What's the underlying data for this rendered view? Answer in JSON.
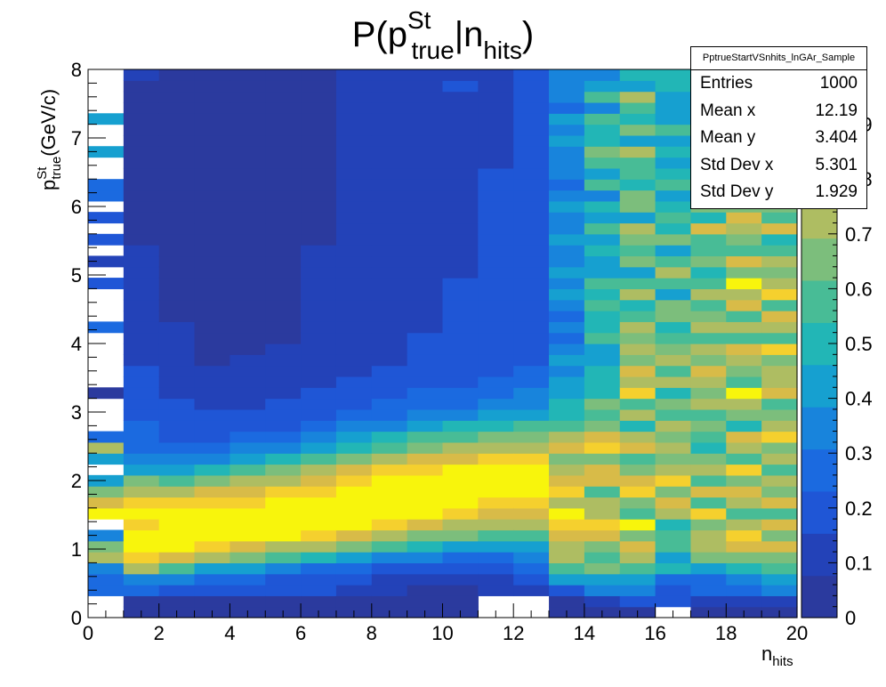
{
  "title": {
    "main": "P(p",
    "sup": "St",
    "sub": "true",
    "sep": "|n",
    "sub2": "hits",
    "close": ")"
  },
  "xaxis": {
    "label_main": "n",
    "label_sub": "hits",
    "ticks": [
      "0",
      "2",
      "4",
      "6",
      "8",
      "10",
      "12",
      "14",
      "16",
      "18",
      "20"
    ]
  },
  "yaxis": {
    "label_main": "p",
    "label_sup": "St",
    "label_sub": "true",
    "label_unit": "(GeV/c)",
    "ticks": [
      "0",
      "1",
      "2",
      "3",
      "4",
      "5",
      "6",
      "7",
      "8"
    ]
  },
  "colorbar": {
    "ticks": [
      "0",
      "0.1",
      "0.2",
      "0.3",
      "0.4",
      "0.5",
      "0.6",
      "0.7",
      "0.8",
      "0.9"
    ],
    "colors": [
      "#2b3a9e",
      "#2342b8",
      "#1f56d6",
      "#1b6ae0",
      "#1884dc",
      "#16a0d0",
      "#22b6b6",
      "#48bc96",
      "#7cbe7c",
      "#aebd62",
      "#d8bb48",
      "#f5d02e",
      "#f8f50c"
    ]
  },
  "stats": {
    "name": "PptrueStartVSnhits_lnGAr_Sample",
    "rows": [
      {
        "label": "Entries",
        "value": "1000"
      },
      {
        "label": "Mean x",
        "value": "12.19"
      },
      {
        "label": "Mean y",
        "value": "3.404"
      },
      {
        "label": "Std Dev x",
        "value": "5.301"
      },
      {
        "label": "Std Dev y",
        "value": "1.929"
      }
    ]
  },
  "chart_data": {
    "type": "heatmap",
    "title": "P(p^St_true|n_hits)",
    "xlabel": "n_hits",
    "ylabel": "p^St_true (GeV/c)",
    "xlim": [
      0,
      20
    ],
    "ylim": [
      0,
      8
    ],
    "zlim": [
      0,
      1
    ],
    "x_bins": 20,
    "y_bins": 50,
    "grid": false,
    "palette": "kBird",
    "stats_box": "top-right",
    "values_by_x_bin": [
      [
        0,
        0,
        0.24,
        0.28,
        0.36,
        0.76,
        0.66,
        0.34,
        0,
        0.94,
        0.82,
        0.66,
        0.42,
        0,
        0.46,
        0.7,
        0.3,
        0,
        0,
        0,
        0.02,
        0,
        0,
        0,
        0,
        0,
        0.3,
        0,
        0,
        0,
        0.16,
        0,
        0.14,
        0,
        0.18,
        0,
        0.2,
        0,
        0.26,
        0.24,
        0,
        0,
        0.42,
        0,
        0,
        0.44,
        0,
        0,
        0,
        0
      ],
      [
        0.02,
        0.04,
        0.26,
        0.38,
        0.72,
        0.9,
        1.0,
        1.0,
        0.9,
        0.96,
        0.88,
        0.76,
        0.62,
        0.46,
        0.38,
        0.3,
        0.28,
        0.26,
        0.22,
        0.2,
        0.18,
        0.18,
        0.16,
        0.14,
        0.14,
        0.12,
        0.12,
        0.1,
        0.1,
        0.1,
        0.08,
        0.08,
        0.08,
        0.08,
        0.06,
        0.06,
        0.06,
        0.06,
        0.06,
        0.04,
        0.04,
        0.04,
        0.04,
        0.04,
        0.04,
        0.06,
        0.06,
        0.04,
        0.04,
        0.14
      ],
      [
        0.04,
        0.04,
        0.22,
        0.32,
        0.56,
        0.8,
        0.94,
        1.0,
        1.0,
        0.94,
        0.86,
        0.72,
        0.58,
        0.46,
        0.34,
        0.26,
        0.22,
        0.2,
        0.18,
        0.16,
        0.14,
        0.12,
        0.1,
        0.1,
        0.08,
        0.08,
        0.08,
        0.06,
        0.06,
        0.06,
        0.04,
        0.04,
        0.04,
        0.04,
        0.04,
        0.02,
        0.02,
        0.02,
        0.02,
        0.02,
        0.02,
        0.02,
        0.02,
        0.02,
        0.02,
        0.02,
        0.02,
        0.02,
        0.02,
        0.02
      ],
      [
        0.04,
        0.04,
        0.2,
        0.26,
        0.46,
        0.7,
        0.88,
        1.0,
        1.0,
        0.96,
        0.9,
        0.8,
        0.64,
        0.5,
        0.38,
        0.28,
        0.22,
        0.18,
        0.16,
        0.14,
        0.12,
        0.1,
        0.08,
        0.06,
        0.06,
        0.06,
        0.04,
        0.04,
        0.02,
        0.02,
        0.02,
        0.02,
        0.02,
        0.02,
        0.02,
        0.02,
        0.02,
        0.02,
        0.02,
        0.02,
        0.02,
        0.02,
        0.02,
        0.02,
        0.02,
        0.02,
        0.02,
        0.02,
        0.02,
        0.02
      ],
      [
        0.04,
        0.04,
        0.18,
        0.24,
        0.4,
        0.62,
        0.82,
        0.98,
        1.0,
        1.0,
        0.92,
        0.84,
        0.7,
        0.56,
        0.42,
        0.32,
        0.26,
        0.2,
        0.18,
        0.14,
        0.12,
        0.1,
        0.08,
        0.08,
        0.06,
        0.06,
        0.04,
        0.04,
        0.02,
        0.02,
        0.02,
        0.02,
        0.02,
        0.02,
        0.02,
        0.02,
        0.02,
        0.02,
        0.02,
        0.02,
        0.02,
        0.02,
        0.02,
        0.02,
        0.02,
        0.02,
        0.02,
        0.02,
        0.02,
        0.02
      ],
      [
        0.04,
        0.04,
        0.16,
        0.2,
        0.34,
        0.56,
        0.76,
        0.94,
        1.0,
        1.0,
        0.96,
        0.88,
        0.76,
        0.62,
        0.48,
        0.38,
        0.3,
        0.22,
        0.18,
        0.16,
        0.14,
        0.12,
        0.1,
        0.08,
        0.08,
        0.06,
        0.06,
        0.06,
        0.06,
        0.06,
        0.06,
        0.06,
        0.06,
        0.06,
        0.06,
        0.06,
        0.06,
        0.06,
        0.06,
        0.06,
        0.06,
        0.02,
        0.02,
        0.02,
        0.02,
        0.02,
        0.02,
        0.02,
        0.02,
        0.02
      ],
      [
        0.04,
        0.04,
        0.16,
        0.18,
        0.3,
        0.5,
        0.7,
        0.88,
        0.98,
        1.0,
        1.0,
        0.92,
        0.82,
        0.7,
        0.56,
        0.44,
        0.34,
        0.26,
        0.2,
        0.18,
        0.16,
        0.14,
        0.12,
        0.1,
        0.1,
        0.08,
        0.08,
        0.08,
        0.08,
        0.08,
        0.08,
        0.08,
        0.08,
        0.08,
        0.06,
        0.06,
        0.06,
        0.06,
        0.06,
        0.04,
        0.04,
        0.04,
        0.04,
        0.04,
        0.04,
        0.02,
        0.02,
        0.02,
        0.02,
        0.02
      ],
      [
        0.04,
        0.04,
        0.14,
        0.16,
        0.26,
        0.44,
        0.62,
        0.82,
        0.94,
        1.0,
        1.0,
        0.96,
        0.88,
        0.78,
        0.64,
        0.52,
        0.42,
        0.32,
        0.26,
        0.22,
        0.18,
        0.16,
        0.14,
        0.12,
        0.12,
        0.12,
        0.1,
        0.1,
        0.1,
        0.1,
        0.1,
        0.1,
        0.1,
        0.1,
        0.1,
        0.1,
        0.1,
        0.1,
        0.1,
        0.1,
        0.1,
        0.12,
        0.12,
        0.12,
        0.12,
        0.12,
        0.12,
        0.12,
        0.12,
        0.12
      ],
      [
        0.04,
        0.04,
        0.1,
        0.14,
        0.22,
        0.38,
        0.56,
        0.74,
        0.88,
        0.98,
        1.0,
        1.0,
        0.94,
        0.86,
        0.72,
        0.6,
        0.48,
        0.38,
        0.3,
        0.26,
        0.22,
        0.18,
        0.16,
        0.14,
        0.14,
        0.14,
        0.12,
        0.12,
        0.12,
        0.12,
        0.12,
        0.12,
        0.12,
        0.12,
        0.12,
        0.12,
        0.12,
        0.12,
        0.12,
        0.12,
        0.12,
        0.14,
        0.14,
        0.14,
        0.14,
        0.14,
        0.14,
        0.14,
        0.14,
        0.14
      ],
      [
        0.04,
        0.04,
        0.06,
        0.12,
        0.2,
        0.34,
        0.5,
        0.68,
        0.82,
        0.94,
        1.0,
        1.0,
        0.98,
        0.9,
        0.78,
        0.66,
        0.54,
        0.44,
        0.34,
        0.28,
        0.24,
        0.2,
        0.18,
        0.16,
        0.16,
        0.16,
        0.14,
        0.14,
        0.14,
        0.14,
        0.14,
        0.14,
        0.14,
        0.14,
        0.14,
        0.14,
        0.14,
        0.12,
        0.12,
        0.12,
        0.12,
        0.14,
        0.14,
        0.14,
        0.14,
        0.14,
        0.14,
        0.1,
        0.14,
        0.14
      ],
      [
        0.04,
        0.04,
        0.06,
        0.12,
        0.18,
        0.3,
        0.46,
        0.62,
        0.76,
        0.88,
        0.96,
        1.0,
        1.0,
        0.94,
        0.82,
        0.7,
        0.58,
        0.48,
        0.38,
        0.3,
        0.26,
        0.22,
        0.2,
        0.18,
        0.18,
        0.18,
        0.16,
        0.16,
        0.16,
        0.16,
        0.16,
        0.14,
        0.14,
        0.14,
        0.14,
        0.14,
        0.14,
        0.14,
        0.14,
        0.14,
        0.14,
        0.14,
        0.14,
        0.14,
        0.14,
        0.14,
        0.14,
        0.12,
        0.16,
        0.14
      ],
      [
        0,
        0,
        0.08,
        0.14,
        0.2,
        0.3,
        0.44,
        0.58,
        0.72,
        0.84,
        0.92,
        0.98,
        1.0,
        0.96,
        0.86,
        0.74,
        0.62,
        0.52,
        0.42,
        0.34,
        0.28,
        0.24,
        0.22,
        0.2,
        0.2,
        0.18,
        0.18,
        0.18,
        0.18,
        0.18,
        0.16,
        0.16,
        0.16,
        0.16,
        0.16,
        0.16,
        0.16,
        0.16,
        0.16,
        0.16,
        0.16,
        0.1,
        0.14,
        0.14,
        0.14,
        0.14,
        0.1,
        0.14,
        0.1,
        0.14
      ],
      [
        0,
        0,
        0.1,
        0.16,
        0.24,
        0.34,
        0.46,
        0.58,
        0.7,
        0.8,
        0.88,
        0.94,
        0.96,
        0.94,
        0.86,
        0.76,
        0.66,
        0.56,
        0.46,
        0.38,
        0.32,
        0.28,
        0.24,
        0.22,
        0.22,
        0.2,
        0.2,
        0.2,
        0.18,
        0.2,
        0.18,
        0.2,
        0.18,
        0.2,
        0.18,
        0.2,
        0.2,
        0.2,
        0.16,
        0.2,
        0.18,
        0.2,
        0.2,
        0.2,
        0.2,
        0.2,
        0.18,
        0.2,
        0.18,
        0.2
      ],
      [
        0.02,
        0.04,
        0.2,
        0.4,
        0.58,
        0.74,
        0.7,
        0.8,
        0.88,
        0.96,
        0.76,
        0.86,
        0.8,
        0.7,
        0.68,
        0.78,
        0.76,
        0.6,
        0.5,
        0.48,
        0.44,
        0.4,
        0.36,
        0.4,
        0.36,
        0.3,
        0.38,
        0.3,
        0.34,
        0.4,
        0.36,
        0.4,
        0.34,
        0.32,
        0.42,
        0.32,
        0.34,
        0.4,
        0.36,
        0.3,
        0.38,
        0.36,
        0.34,
        0.44,
        0.32,
        0.4,
        0.3,
        0.38,
        0.34,
        0.36
      ],
      [
        0.06,
        0.1,
        0.36,
        0.46,
        0.62,
        0.56,
        0.68,
        0.82,
        0.9,
        0.72,
        0.74,
        0.6,
        0.8,
        0.84,
        0.66,
        0.86,
        0.78,
        0.68,
        0.54,
        0.62,
        0.52,
        0.48,
        0.5,
        0.44,
        0.46,
        0.58,
        0.5,
        0.52,
        0.6,
        0.48,
        0.54,
        0.46,
        0.42,
        0.52,
        0.42,
        0.58,
        0.46,
        0.52,
        0.38,
        0.56,
        0.44,
        0.54,
        0.62,
        0.48,
        0.5,
        0.56,
        0.38,
        0.58,
        0.46,
        0.34
      ],
      [
        0.06,
        0.16,
        0.36,
        0.4,
        0.58,
        0.74,
        0.82,
        0.64,
        0.96,
        0.56,
        0.66,
        0.9,
        0.78,
        0.66,
        0.6,
        0.82,
        0.72,
        0.5,
        0.7,
        0.6,
        0.88,
        0.76,
        0.84,
        0.64,
        0.7,
        0.62,
        0.76,
        0.54,
        0.52,
        0.7,
        0.56,
        0.46,
        0.68,
        0.58,
        0.64,
        0.72,
        0.44,
        0.62,
        0.66,
        0.48,
        0.54,
        0.6,
        0.7,
        0.44,
        0.62,
        0.52,
        0.58,
        0.7,
        0.42,
        0.48
      ],
      [
        0,
        0.16,
        0.2,
        0.3,
        0.48,
        0.44,
        0.56,
        0.58,
        0.48,
        0.74,
        0.8,
        0.62,
        0.92,
        0.7,
        0.68,
        0.76,
        0.62,
        0.72,
        0.6,
        0.66,
        0.48,
        0.7,
        0.56,
        0.74,
        0.64,
        0.58,
        0.52,
        0.68,
        0.62,
        0.46,
        0.54,
        0.7,
        0.56,
        0.46,
        0.64,
        0.52,
        0.6,
        0.48,
        0.42,
        0.58,
        0.5,
        0.46,
        0.5,
        0.4,
        0.54,
        0.4,
        0.46,
        0.44,
        0.52,
        0.48
      ],
      [
        0.04,
        0.1,
        0.26,
        0.3,
        0.46,
        0.62,
        0.7,
        0.76,
        0.66,
        0.88,
        0.6,
        0.82,
        0.58,
        0.72,
        0.66,
        0.5,
        0.6,
        0.68,
        0.56,
        0.74,
        0.62,
        0.72,
        0.82,
        0.64,
        0.7,
        0.6,
        0.76,
        0.64,
        0.54,
        0.72,
        0.6,
        0.48,
        0.62,
        0.56,
        0.6,
        0.78,
        0.52,
        0.66,
        0.56,
        0.5,
        0.24,
        0.58,
        0.44,
        0.6,
        0.56,
        0.48,
        0.42,
        0.52,
        0.36,
        0.46
      ],
      [
        0.04,
        0.1,
        0.28,
        0.38,
        0.52,
        0.66,
        0.8,
        0.9,
        0.7,
        0.58,
        0.74,
        0.84,
        0.68,
        0.92,
        0.6,
        0.72,
        0.8,
        0.52,
        0.66,
        0.74,
        0.98,
        0.56,
        0.66,
        0.7,
        0.84,
        0.6,
        0.74,
        0.58,
        0.78,
        0.72,
        0.98,
        0.66,
        0.82,
        0.6,
        0.68,
        0.74,
        0.78,
        0.62,
        0.5,
        0.6,
        0.56,
        0.64,
        0.52,
        0.4,
        0.58,
        0.42,
        0.3,
        0.34,
        0.6,
        0.24
      ],
      [
        0.04,
        0.1,
        0.32,
        0.4,
        0.56,
        0.64,
        0.78,
        0.66,
        0.82,
        0.54,
        0.8,
        0.68,
        0.76,
        0.6,
        0.72,
        0.64,
        0.88,
        0.74,
        0.66,
        0.58,
        0.84,
        0.7,
        0.76,
        0.62,
        0.9,
        0.56,
        0.72,
        0.8,
        0.6,
        0.86,
        0.74,
        0.62,
        0.7,
        0.56,
        0.48,
        0.8,
        0.54,
        0.66,
        0.62,
        0.48,
        0.52,
        0.56,
        0.46,
        0.56,
        0.5,
        0.42,
        0.46,
        0.38,
        0.34,
        0.4
      ]
    ]
  }
}
